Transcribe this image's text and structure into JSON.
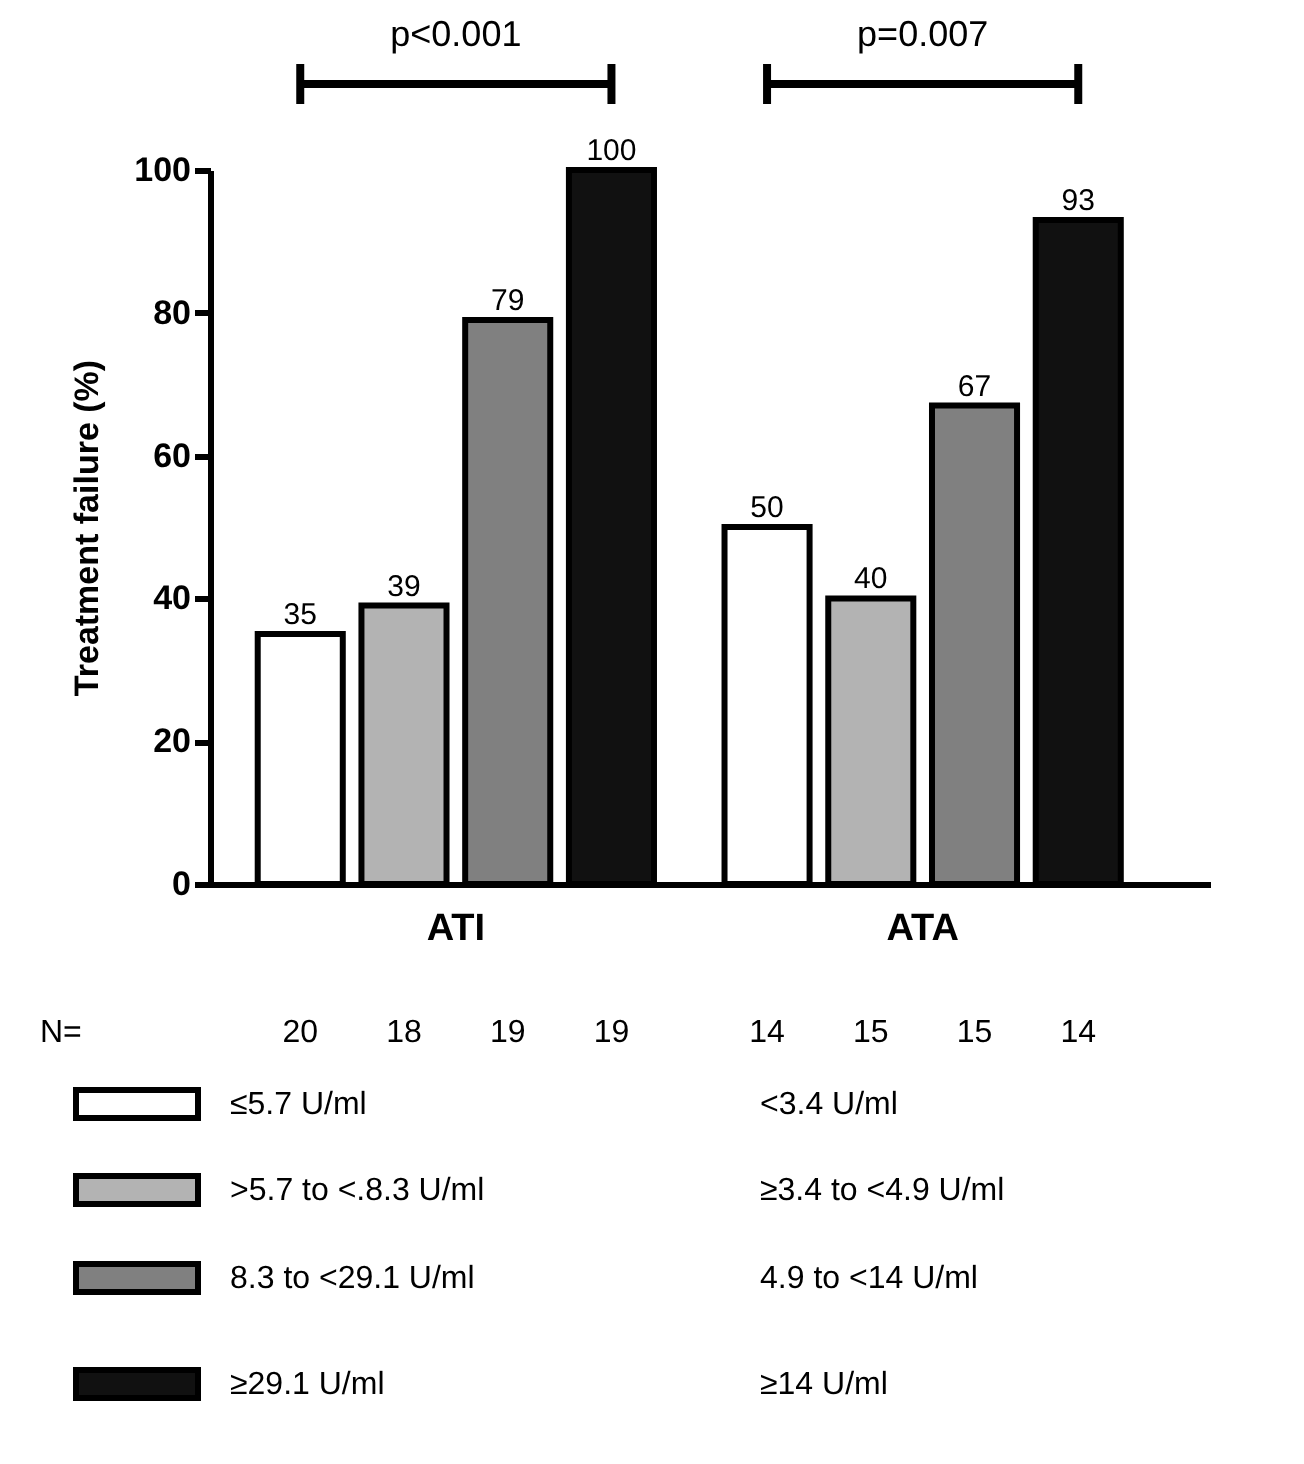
{
  "chart_data": {
    "type": "bar",
    "categories": [
      "ATI",
      "ATA"
    ],
    "series": [
      {
        "name": "≤5.7 U/ml",
        "color": "#ffffff",
        "values": [
          35,
          50
        ]
      },
      {
        "name": ">5.7 to <.8.3 U/ml",
        "color": "#b3b3b3",
        "values": [
          39,
          40
        ]
      },
      {
        "name": "8.3 to <29.1 U/ml",
        "color": "#808080",
        "values": [
          79,
          67
        ]
      },
      {
        "name": "≥29.1 U/ml",
        "color": "#111111",
        "values": [
          100,
          93
        ]
      }
    ],
    "ylabel": "Treatment failure (%)",
    "ylim": [
      0,
      100
    ],
    "yticks": [
      0,
      20,
      40,
      60,
      80,
      100
    ],
    "data_labels": true,
    "legend": "bottom",
    "annotations": [
      "p<0.001",
      "p=0.007",
      "N=",
      "20",
      "18",
      "19",
      "19",
      "14",
      "15",
      "15",
      "14",
      "<3.4 U/ml",
      "≥3.4 to <4.9 U/ml",
      "4.9 to <14 U/ml",
      "≥14 U/ml"
    ]
  }
}
